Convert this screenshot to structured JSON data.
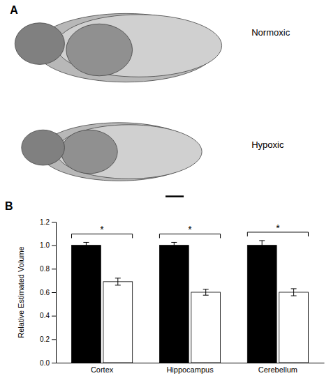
{
  "chart_data": {
    "type": "bar",
    "categories": [
      "Cortex",
      "Hippocampus",
      "Cerebellum"
    ],
    "series": [
      {
        "color": "#000000",
        "values": [
          1.0,
          1.0,
          1.0
        ],
        "errors": [
          0.025,
          0.025,
          0.04
        ]
      },
      {
        "color": "#ffffff",
        "values": [
          0.69,
          0.6,
          0.6
        ],
        "errors": [
          0.03,
          0.025,
          0.03
        ]
      }
    ],
    "ylabel": "Relative Estimated Volume",
    "ylim": [
      0.0,
      1.2
    ],
    "yticks": [
      {
        "value": 0.0,
        "label": "0.0"
      },
      0.2,
      0.4,
      0.6,
      0.8,
      {
        "value": 1.0,
        "label": "1.0"
      },
      1.2
    ],
    "grid": false,
    "annotations": [
      "A",
      "Normoxic",
      "Hypoxic",
      "B",
      "*",
      "*",
      "*"
    ]
  }
}
